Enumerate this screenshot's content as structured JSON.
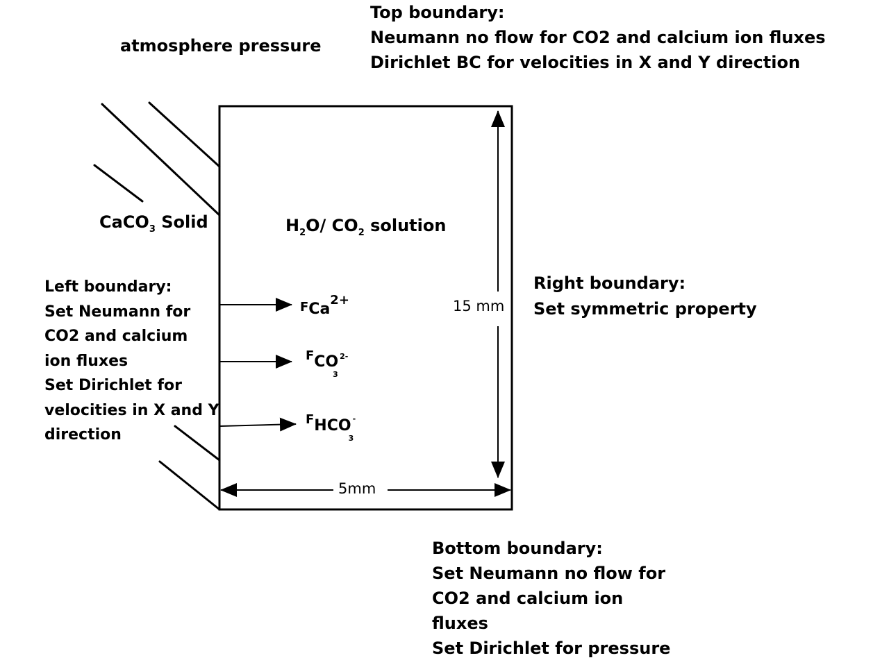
{
  "labels": {
    "atmosphere": "atmosphere pressure",
    "top_boundary": [
      "Top boundary:",
      "Neumann no flow for CO2 and calcium ion fluxes",
      "Dirichlet BC for velocities in X and Y direction"
    ],
    "solid": {
      "base": "CaCO",
      "sub": "3",
      "rest": " Solid"
    },
    "solution": {
      "a": "H",
      "sub1": "2",
      "b": "O/ CO",
      "sub2": "2",
      "c": " solution"
    },
    "left_boundary": [
      "Left boundary:",
      "Set Neumann for",
      "CO2 and calcium",
      "ion fluxes",
      "Set Dirichlet for",
      "velocities in X and Y",
      "direction"
    ],
    "right_boundary": [
      "Right boundary:",
      "Set symmetric property"
    ],
    "bottom_boundary": [
      "Bottom boundary:",
      "Set Neumann no flow for",
      "CO2 and calcium ion",
      "fluxes",
      "Set Dirichlet for pressure"
    ],
    "height_dim": "15 mm",
    "width_dim": "5mm"
  },
  "fluxes": [
    {
      "symbol": "F",
      "species": "Ca",
      "sub": "",
      "charge": "2+"
    },
    {
      "symbol": "F",
      "species": "CO",
      "sub": "3",
      "charge": "2-"
    },
    {
      "symbol": "F",
      "species": "HCO",
      "sub": "3",
      "charge": "-"
    }
  ]
}
